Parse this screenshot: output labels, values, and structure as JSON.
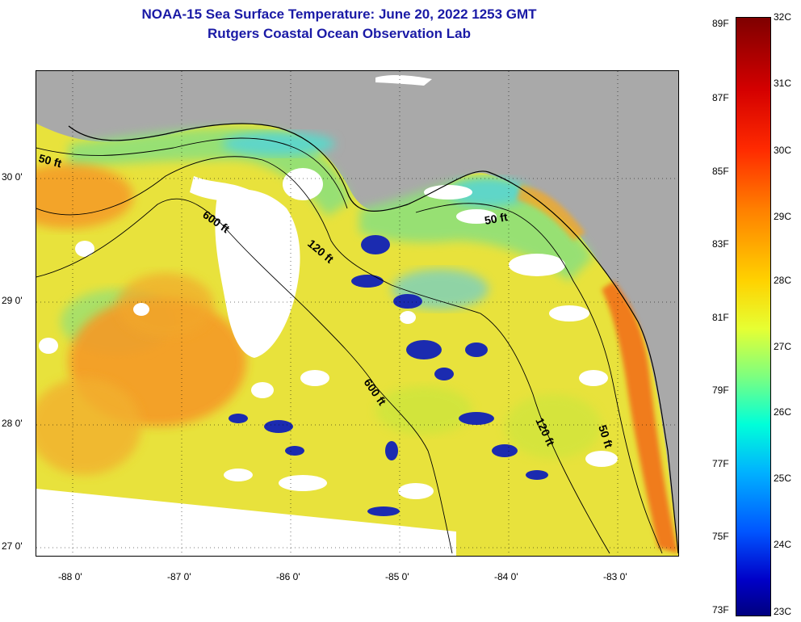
{
  "header": {
    "title_line1": "NOAA-15 Sea Surface Temperature:  June 20, 2022 1253 GMT",
    "title_line2": "Rutgers Coastal Ocean Observation Lab"
  },
  "map": {
    "x_ticks": [
      "-88 0'",
      "-87 0'",
      "-86 0'",
      "-85 0'",
      "-84 0'",
      "-83 0'"
    ],
    "y_ticks": [
      "30 0'",
      "29 0'",
      "28 0'",
      "27 0'"
    ],
    "contour_labels": [
      "50 ft",
      "600 ft",
      "120 ft",
      "50 ft",
      "600 ft",
      "120 ft",
      "50 ft"
    ]
  },
  "colorbar": {
    "fahrenheit": [
      "89F",
      "87F",
      "85F",
      "83F",
      "81F",
      "79F",
      "77F",
      "75F",
      "73F"
    ],
    "celsius": [
      "32C",
      "31C",
      "30C",
      "29C",
      "28C",
      "27C",
      "26C",
      "25C",
      "24C",
      "23C"
    ]
  },
  "colors": {
    "title": "#1a1aa6",
    "land": "#a9a9a9",
    "cloud": "#ffffff",
    "warm": "#f59a26",
    "mid": "#e8e23c",
    "cool": "#8fe07a",
    "cold": "#1b2bb0"
  }
}
